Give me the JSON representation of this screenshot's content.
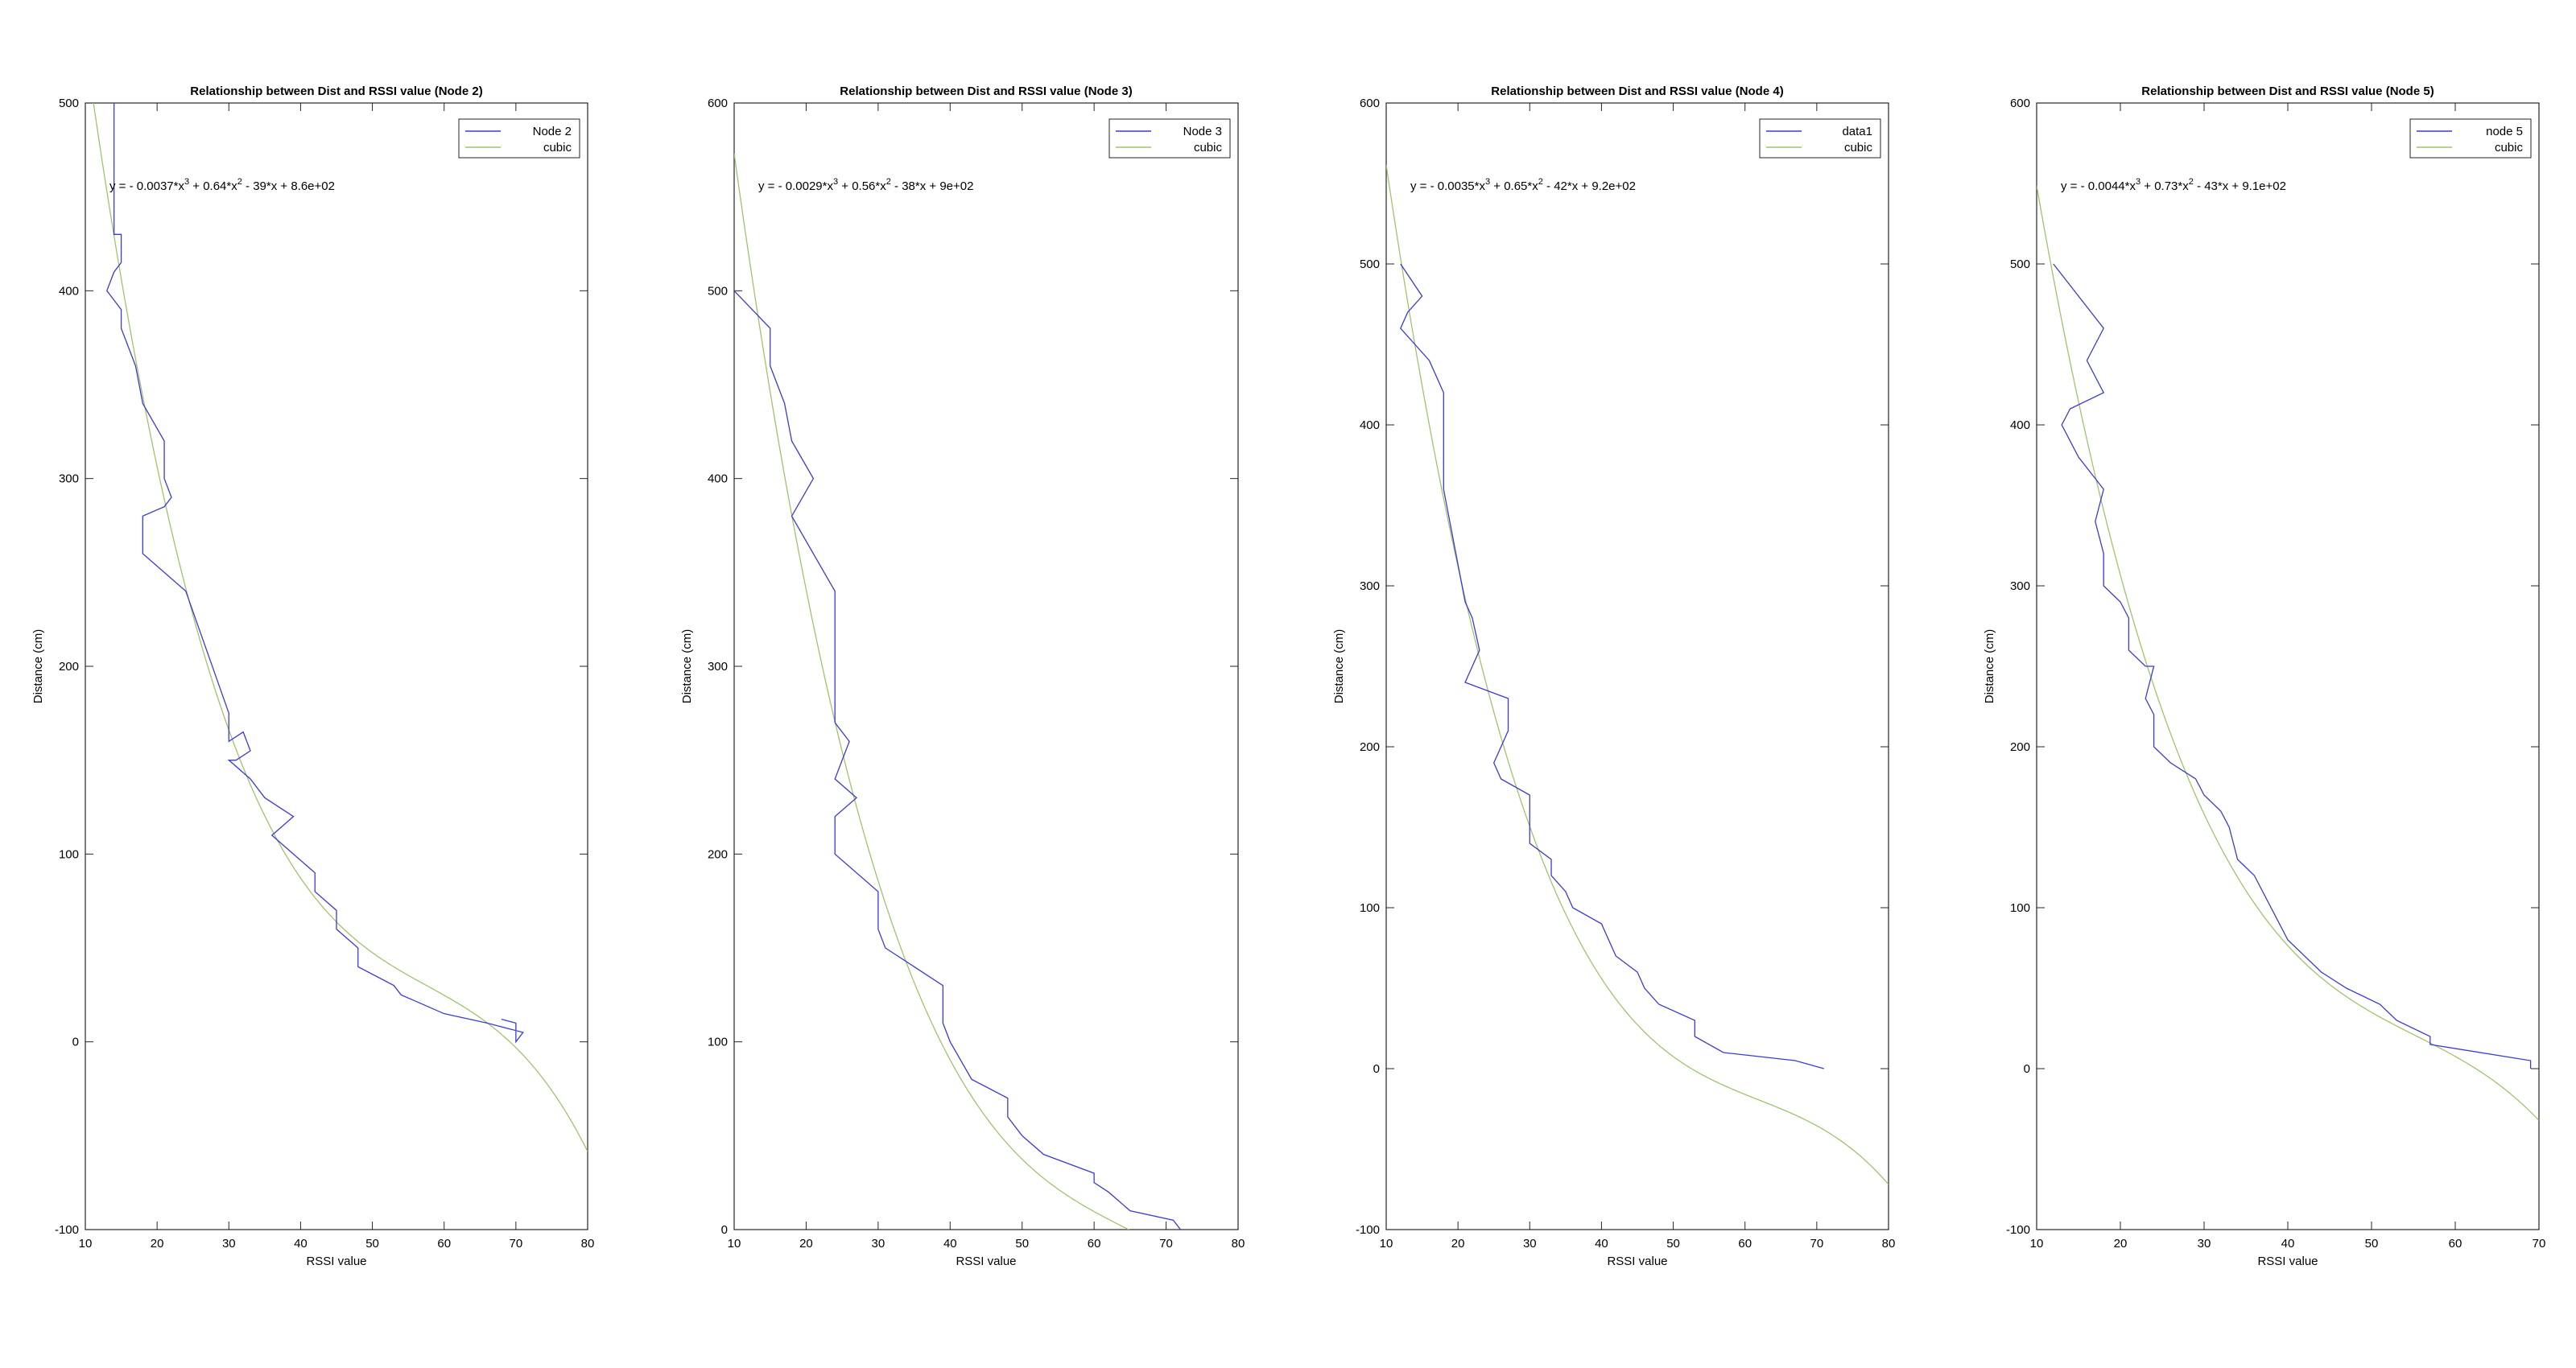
{
  "chart_data": [
    {
      "type": "line",
      "title": "Relationship between Dist and RSSI value (Node 2)",
      "xlabel": "RSSI value",
      "ylabel": "Distance (cm)",
      "xlim": [
        10,
        80
      ],
      "ylim": [
        -100,
        500
      ],
      "xticks": [
        10,
        20,
        30,
        40,
        50,
        60,
        70,
        80
      ],
      "yticks": [
        -100,
        0,
        100,
        200,
        300,
        400,
        500
      ],
      "legend_position": "top-right",
      "grid": false,
      "equation": {
        "prefix": "y = - 0.0037*x",
        "t2": " + 0.64*x",
        "t3": " - 39*x + 8.6e+02"
      },
      "fit": {
        "a": -0.0037,
        "b": 0.64,
        "c": -39,
        "d": 860
      },
      "series": [
        {
          "name": "Node 2",
          "color": "#3a3ad8",
          "points": [
            [
              14,
              500
            ],
            [
              14,
              430
            ],
            [
              15,
              430
            ],
            [
              15,
              415
            ],
            [
              14,
              410
            ],
            [
              13,
              400
            ],
            [
              15,
              390
            ],
            [
              15,
              380
            ],
            [
              17,
              360
            ],
            [
              18,
              340
            ],
            [
              21,
              320
            ],
            [
              21,
              300
            ],
            [
              22,
              290
            ],
            [
              21,
              285
            ],
            [
              18,
              280
            ],
            [
              18,
              260
            ],
            [
              24,
              240
            ],
            [
              30,
              175
            ],
            [
              30,
              160
            ],
            [
              32,
              165
            ],
            [
              33,
              155
            ],
            [
              31,
              150
            ],
            [
              30,
              150
            ],
            [
              33,
              140
            ],
            [
              35,
              130
            ],
            [
              39,
              120
            ],
            [
              36,
              110
            ],
            [
              42,
              90
            ],
            [
              42,
              80
            ],
            [
              45,
              70
            ],
            [
              45,
              60
            ],
            [
              48,
              50
            ],
            [
              48,
              40
            ],
            [
              53,
              30
            ],
            [
              54,
              25
            ],
            [
              60,
              15
            ],
            [
              66,
              10
            ],
            [
              71,
              5
            ],
            [
              70,
              0
            ],
            [
              70,
              10
            ],
            [
              68,
              12
            ]
          ]
        },
        {
          "name": "cubic",
          "color": "#9fc46a",
          "fit": true
        }
      ]
    },
    {
      "type": "line",
      "title": "Relationship between Dist and RSSI value (Node 3)",
      "xlabel": "RSSI value",
      "ylabel": "Distance (cm)",
      "xlim": [
        10,
        80
      ],
      "ylim": [
        0,
        600
      ],
      "xticks": [
        10,
        20,
        30,
        40,
        50,
        60,
        70,
        80
      ],
      "yticks": [
        0,
        100,
        200,
        300,
        400,
        500,
        600
      ],
      "legend_position": "top-right",
      "grid": false,
      "equation": {
        "prefix": "y = - 0.0029*x",
        "t2": " + 0.56*x",
        "t3": " - 38*x + 9e+02"
      },
      "fit": {
        "a": -0.0029,
        "b": 0.56,
        "c": -38,
        "d": 900
      },
      "series": [
        {
          "name": "Node 3",
          "color": "#3a3ad8",
          "points": [
            [
              10,
              500
            ],
            [
              15,
              480
            ],
            [
              15,
              460
            ],
            [
              17,
              440
            ],
            [
              18,
              420
            ],
            [
              21,
              400
            ],
            [
              18,
              380
            ],
            [
              24,
              340
            ],
            [
              24,
              270
            ],
            [
              26,
              260
            ],
            [
              25,
              250
            ],
            [
              24,
              240
            ],
            [
              27,
              230
            ],
            [
              24,
              220
            ],
            [
              24,
              200
            ],
            [
              30,
              180
            ],
            [
              30,
              160
            ],
            [
              31,
              150
            ],
            [
              39,
              130
            ],
            [
              39,
              110
            ],
            [
              40,
              100
            ],
            [
              43,
              80
            ],
            [
              48,
              70
            ],
            [
              48,
              60
            ],
            [
              50,
              50
            ],
            [
              53,
              40
            ],
            [
              60,
              30
            ],
            [
              60,
              25
            ],
            [
              62,
              20
            ],
            [
              65,
              10
            ],
            [
              71,
              5
            ],
            [
              72,
              0
            ]
          ]
        },
        {
          "name": "cubic",
          "color": "#9fc46a",
          "fit": true
        }
      ]
    },
    {
      "type": "line",
      "title": "Relationship between Dist and RSSI value (Node 4)",
      "xlabel": "RSSI value",
      "ylabel": "Distance (cm)",
      "xlim": [
        10,
        80
      ],
      "ylim": [
        -100,
        600
      ],
      "xticks": [
        10,
        20,
        30,
        40,
        50,
        60,
        70,
        80
      ],
      "yticks": [
        -100,
        0,
        100,
        200,
        300,
        400,
        500,
        600
      ],
      "legend_position": "top-right",
      "grid": false,
      "equation": {
        "prefix": "y = - 0.0035*x",
        "t2": " + 0.65*x",
        "t3": " - 42*x + 9.2e+02"
      },
      "fit": {
        "a": -0.0035,
        "b": 0.65,
        "c": -42,
        "d": 920
      },
      "series": [
        {
          "name": "data1",
          "color": "#3a3ad8",
          "points": [
            [
              12,
              500
            ],
            [
              15,
              480
            ],
            [
              13,
              470
            ],
            [
              12,
              460
            ],
            [
              16,
              440
            ],
            [
              18,
              420
            ],
            [
              18,
              360
            ],
            [
              21,
              290
            ],
            [
              22,
              280
            ],
            [
              23,
              260
            ],
            [
              22,
              250
            ],
            [
              21,
              240
            ],
            [
              27,
              230
            ],
            [
              27,
              210
            ],
            [
              26,
              200
            ],
            [
              25,
              190
            ],
            [
              26,
              180
            ],
            [
              30,
              170
            ],
            [
              30,
              140
            ],
            [
              33,
              130
            ],
            [
              33,
              120
            ],
            [
              35,
              110
            ],
            [
              36,
              100
            ],
            [
              40,
              90
            ],
            [
              42,
              70
            ],
            [
              45,
              60
            ],
            [
              46,
              50
            ],
            [
              48,
              40
            ],
            [
              53,
              30
            ],
            [
              53,
              20
            ],
            [
              57,
              10
            ],
            [
              67,
              5
            ],
            [
              71,
              0
            ]
          ]
        },
        {
          "name": "cubic",
          "color": "#9fc46a",
          "fit": true
        }
      ]
    },
    {
      "type": "line",
      "title": "Relationship between Dist and RSSI value (Node 5)",
      "xlabel": "RSSI value",
      "ylabel": "Distance (cm)",
      "xlim": [
        10,
        70
      ],
      "ylim": [
        -100,
        600
      ],
      "xticks": [
        10,
        20,
        30,
        40,
        50,
        60,
        70
      ],
      "yticks": [
        -100,
        0,
        100,
        200,
        300,
        400,
        500,
        600
      ],
      "legend_position": "top-right",
      "grid": false,
      "equation": {
        "prefix": "y = - 0.0044*x",
        "t2": " + 0.73*x",
        "t3": " - 43*x + 9.1e+02"
      },
      "fit": {
        "a": -0.0044,
        "b": 0.73,
        "c": -43,
        "d": 910
      },
      "series": [
        {
          "name": "node 5",
          "color": "#3a3ad8",
          "points": [
            [
              12,
              500
            ],
            [
              18,
              460
            ],
            [
              16,
              440
            ],
            [
              18,
              420
            ],
            [
              14,
              410
            ],
            [
              13,
              400
            ],
            [
              15,
              380
            ],
            [
              18,
              360
            ],
            [
              17,
              340
            ],
            [
              18,
              320
            ],
            [
              18,
              300
            ],
            [
              20,
              290
            ],
            [
              21,
              280
            ],
            [
              21,
              260
            ],
            [
              23,
              250
            ],
            [
              24,
              250
            ],
            [
              23,
              230
            ],
            [
              24,
              220
            ],
            [
              24,
              200
            ],
            [
              26,
              190
            ],
            [
              29,
              180
            ],
            [
              30,
              170
            ],
            [
              32,
              160
            ],
            [
              33,
              150
            ],
            [
              34,
              130
            ],
            [
              36,
              120
            ],
            [
              40,
              80
            ],
            [
              44,
              60
            ],
            [
              47,
              50
            ],
            [
              51,
              40
            ],
            [
              53,
              30
            ],
            [
              57,
              20
            ],
            [
              57,
              15
            ],
            [
              69,
              5
            ],
            [
              69,
              0
            ]
          ]
        },
        {
          "name": "cubic",
          "color": "#9fc46a",
          "fit": true
        }
      ]
    }
  ]
}
